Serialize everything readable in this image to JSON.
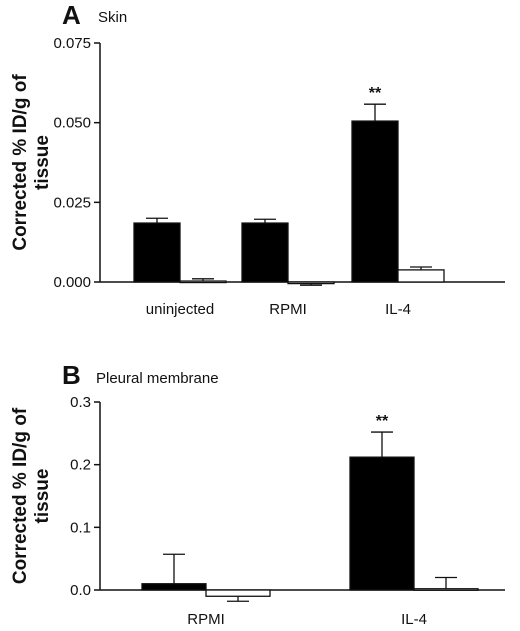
{
  "chart_data": [
    {
      "type": "bar",
      "panel_letter": "A",
      "title": "Skin",
      "ylabel": "Corrected % ID/g of tissue",
      "ylim": [
        0,
        0.075
      ],
      "yticks": [
        "0.000",
        "0.025",
        "0.050",
        "0.075"
      ],
      "ytick_values": [
        0,
        0.025,
        0.05,
        0.075
      ],
      "categories": [
        "uninjected",
        "RPMI",
        "IL-4"
      ],
      "series": [
        {
          "color": "#000000",
          "values": [
            0.0185,
            0.0185,
            0.0505
          ],
          "errors": [
            0.0015,
            0.0012,
            0.0053
          ]
        },
        {
          "color": "#ffffff",
          "values": [
            0.0003,
            -0.0005,
            0.0038
          ],
          "errors": [
            0.0007,
            0.0005,
            0.0009
          ]
        }
      ],
      "annotations": [
        {
          "category": "IL-4",
          "series": 0,
          "text": "**"
        }
      ]
    },
    {
      "type": "bar",
      "panel_letter": "B",
      "title": "Pleural membrane",
      "ylabel": "Corrected % ID/g of tissue",
      "ylim": [
        0,
        0.3
      ],
      "yticks": [
        "0.0",
        "0.1",
        "0.2",
        "0.3"
      ],
      "ytick_values": [
        0,
        0.1,
        0.2,
        0.3
      ],
      "categories": [
        "RPMI",
        "IL-4"
      ],
      "series": [
        {
          "color": "#000000",
          "values": [
            0.01,
            0.212
          ],
          "errors": [
            0.047,
            0.04
          ]
        },
        {
          "color": "#ffffff",
          "values": [
            -0.01,
            0.002
          ],
          "errors": [
            0.008,
            0.018
          ]
        }
      ],
      "annotations": [
        {
          "category": "IL-4",
          "series": 0,
          "text": "**"
        }
      ]
    }
  ]
}
